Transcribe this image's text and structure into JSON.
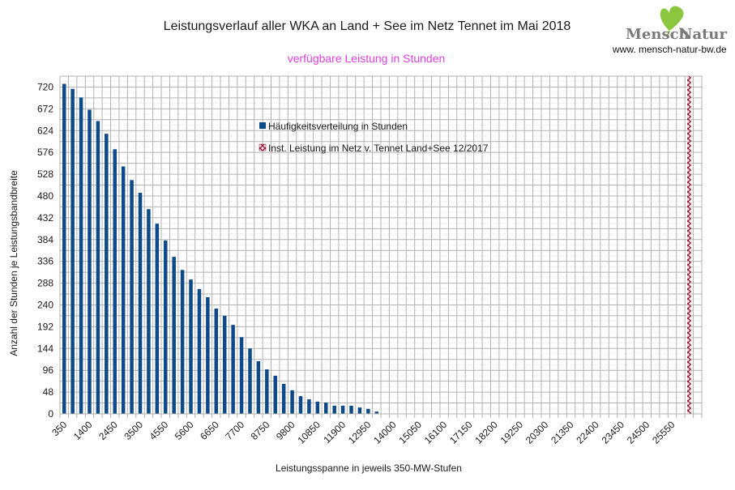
{
  "chart_data": {
    "type": "bar",
    "title": "Leistungsverlauf aller WKA an Land + See im Netz Tennet im Mai 2018",
    "subtitle": "verfügbare Leistung in Stunden",
    "xlabel": "Leistungsspanne in jeweils 350-MW-Stufen",
    "ylabel": "Anzahl der Stunden je Leistungsbandbreite",
    "ylim": [
      0,
      744
    ],
    "y_ticks": [
      0,
      48,
      96,
      144,
      192,
      240,
      288,
      336,
      384,
      432,
      480,
      528,
      576,
      624,
      672,
      720
    ],
    "y_gridline_step": 24,
    "x_step": 350,
    "x_start": 350,
    "category_count": 76,
    "x_tick_labels": [
      "350",
      "1400",
      "2450",
      "3500",
      "4550",
      "5600",
      "6650",
      "7700",
      "8750",
      "9800",
      "10850",
      "11900",
      "12950",
      "14000",
      "15050",
      "16100",
      "17150",
      "18200",
      "19250",
      "20300",
      "21350",
      "22400",
      "23450",
      "24500",
      "25550"
    ],
    "grid": true,
    "legend_position": "inside-top-center",
    "series": [
      {
        "name": "Häufigkeitsverteilung in Stunden",
        "color": "#0d4a8a",
        "values": [
          727,
          716,
          697,
          670,
          645,
          617,
          583,
          545,
          515,
          487,
          451,
          419,
          382,
          346,
          317,
          296,
          275,
          257,
          232,
          216,
          196,
          169,
          144,
          116,
          98,
          84,
          66,
          52,
          39,
          32,
          27,
          25,
          18,
          18,
          18,
          14,
          11,
          5,
          1
        ]
      },
      {
        "name": "Inst. Leistung im Netz v. Tennet  Land+See 12/2017",
        "color": "#8a1030",
        "pattern": "cross-hatch",
        "category_index": 74,
        "value": 744
      }
    ]
  },
  "logo": {
    "brand": "MenschNatur",
    "word1": "Mensch",
    "word2": "Natur",
    "url": "www. mensch-natur-bw.de",
    "leaf_color": "#8cc63f"
  }
}
